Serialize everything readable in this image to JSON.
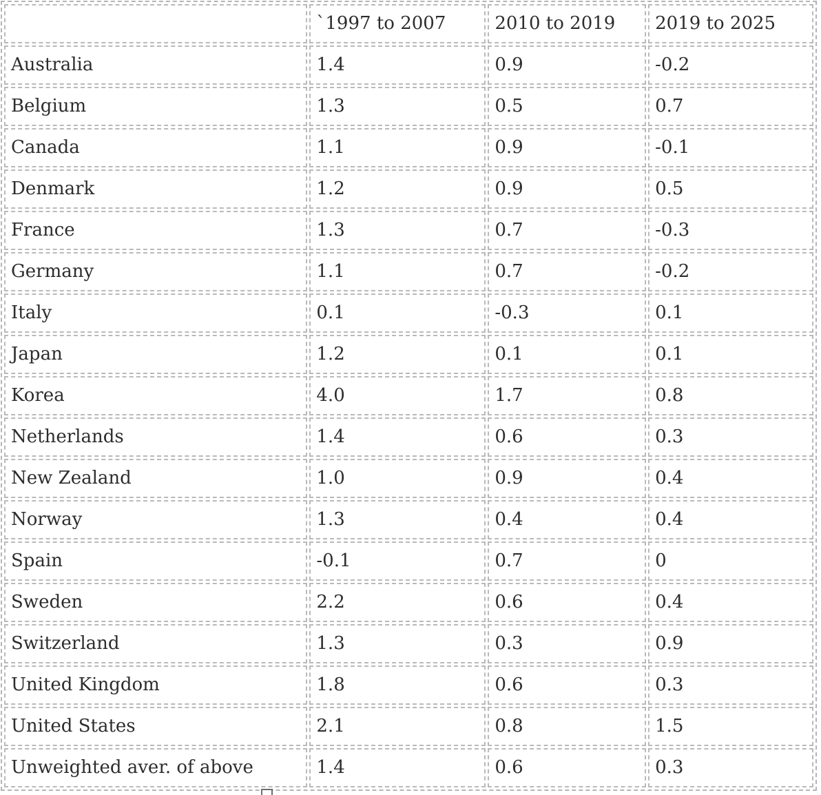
{
  "table": {
    "columns": [
      "",
      "`1997 to 2007",
      "2010 to 2019",
      "2019 to 2025"
    ],
    "rows": [
      {
        "label": "Australia",
        "values": [
          "1.4",
          "0.9",
          "-0.2"
        ]
      },
      {
        "label": "Belgium",
        "values": [
          "1.3",
          "0.5",
          "0.7"
        ]
      },
      {
        "label": "Canada",
        "values": [
          "1.1",
          "0.9",
          "-0.1"
        ]
      },
      {
        "label": "Denmark",
        "values": [
          "1.2",
          "0.9",
          "0.5"
        ]
      },
      {
        "label": "France",
        "values": [
          "1.3",
          "0.7",
          "-0.3"
        ]
      },
      {
        "label": "Germany",
        "values": [
          "1.1",
          "0.7",
          "-0.2"
        ]
      },
      {
        "label": "Italy",
        "values": [
          "0.1",
          "-0.3",
          "0.1"
        ]
      },
      {
        "label": "Japan",
        "values": [
          "1.2",
          "0.1",
          "0.1"
        ]
      },
      {
        "label": "Korea",
        "values": [
          "4.0",
          "1.7",
          "0.8"
        ]
      },
      {
        "label": "Netherlands",
        "values": [
          "1.4",
          "0.6",
          "0.3"
        ]
      },
      {
        "label": "New Zealand",
        "values": [
          "1.0",
          "0.9",
          "0.4"
        ]
      },
      {
        "label": "Norway",
        "values": [
          "1.3",
          "0.4",
          "0.4"
        ]
      },
      {
        "label": "Spain",
        "values": [
          "-0.1",
          "0.7",
          "0"
        ]
      },
      {
        "label": "Sweden",
        "values": [
          "2.2",
          "0.6",
          "0.4"
        ]
      },
      {
        "label": "Switzerland",
        "values": [
          "1.3",
          "0.3",
          "0.9"
        ]
      },
      {
        "label": "United Kingdom",
        "values": [
          "1.8",
          "0.6",
          "0.3"
        ]
      },
      {
        "label": "United States",
        "values": [
          "2.1",
          "0.8",
          "1.5"
        ]
      },
      {
        "label": "Unweighted aver. of above",
        "values": [
          "1.4",
          "0.6",
          "0.3"
        ]
      }
    ]
  }
}
